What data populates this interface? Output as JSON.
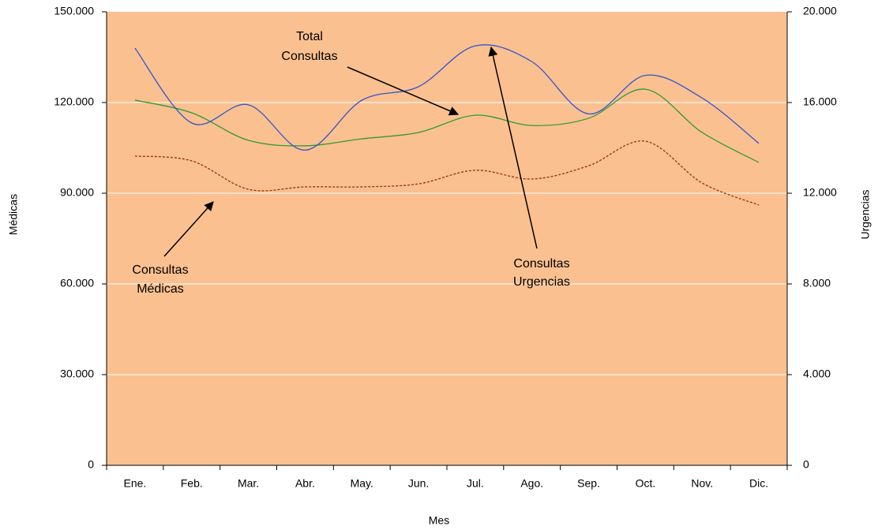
{
  "chart_data": {
    "type": "line",
    "x_label": "Mes",
    "y_label": "Médicas",
    "y2_label": "Urgencias",
    "categories": [
      "Ene.",
      "Feb.",
      "Mar.",
      "Abr.",
      "May.",
      "Jun.",
      "Jul.",
      "Ago.",
      "Sep.",
      "Oct.",
      "Nov.",
      "Dic."
    ],
    "series": [
      {
        "color": "#339933",
        "values": [
          120800,
          116600,
          107500,
          105700,
          108000,
          110100,
          115800,
          112400,
          114800,
          124400,
          110100,
          100200
        ]
      },
      {
        "color": "#993300",
        "dashed": true,
        "values": [
          102300,
          100700,
          91300,
          92100,
          92100,
          93100,
          97600,
          94700,
          99100,
          107200,
          93400,
          86100
        ]
      },
      {
        "color": "#3355cc",
        "axis": "y2",
        "values": [
          18400,
          15100,
          15900,
          13900,
          16100,
          16700,
          18500,
          17800,
          15500,
          17200,
          16200,
          14200
        ]
      }
    ],
    "ylim": [
      0,
      150000
    ],
    "yticks": [
      0,
      {
        "value": 30000,
        "label": "30.000"
      },
      {
        "value": 60000,
        "label": "60.000"
      },
      {
        "value": 90000,
        "label": "90.000"
      },
      {
        "value": 120000,
        "label": "120.000"
      },
      {
        "value": 150000,
        "label": "150.000"
      }
    ],
    "y2lim": [
      0,
      20000
    ],
    "y2ticks": [
      0,
      {
        "value": 4000,
        "label": "4.000"
      },
      {
        "value": 8000,
        "label": "8.000"
      },
      {
        "value": 12000,
        "label": "12.000"
      },
      {
        "value": 16000,
        "label": "16.000"
      },
      {
        "value": 20000,
        "label": "20.000"
      }
    ],
    "grid": true,
    "background": "#fac090",
    "annotations": [
      {
        "lines": [
          "Total",
          "Consultas"
        ]
      },
      {
        "lines": [
          "Consultas",
          "Urgencias"
        ]
      },
      {
        "lines": [
          "Consultas",
          "Médicas"
        ]
      }
    ]
  }
}
